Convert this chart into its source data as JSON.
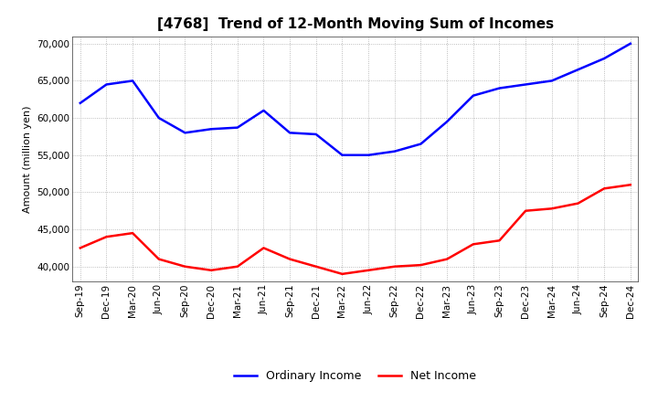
{
  "title": "[4768]  Trend of 12-Month Moving Sum of Incomes",
  "ylabel": "Amount (million yen)",
  "ylim": [
    38000,
    71000
  ],
  "yticks": [
    40000,
    45000,
    50000,
    55000,
    60000,
    65000,
    70000
  ],
  "x_labels": [
    "Sep-19",
    "Dec-19",
    "Mar-20",
    "Jun-20",
    "Sep-20",
    "Dec-20",
    "Mar-21",
    "Jun-21",
    "Sep-21",
    "Dec-21",
    "Mar-22",
    "Jun-22",
    "Sep-22",
    "Dec-22",
    "Mar-23",
    "Jun-23",
    "Sep-23",
    "Dec-23",
    "Mar-24",
    "Jun-24",
    "Sep-24",
    "Dec-24"
  ],
  "ordinary_income": [
    62000,
    64500,
    65000,
    60000,
    58000,
    58500,
    58700,
    61000,
    58000,
    57800,
    55000,
    55000,
    55500,
    56500,
    59500,
    63000,
    64000,
    64500,
    65000,
    66500,
    68000,
    70000
  ],
  "net_income": [
    42500,
    44000,
    44500,
    41000,
    40000,
    39500,
    40000,
    42500,
    41000,
    40000,
    39000,
    39500,
    40000,
    40200,
    41000,
    43000,
    43500,
    47500,
    47800,
    48500,
    50500,
    51000
  ],
  "ordinary_color": "#0000FF",
  "net_color": "#FF0000",
  "line_width": 1.8,
  "background_color": "#FFFFFF",
  "grid_color": "#aaaaaa",
  "title_fontsize": 11,
  "legend_fontsize": 9,
  "tick_fontsize": 7.5
}
